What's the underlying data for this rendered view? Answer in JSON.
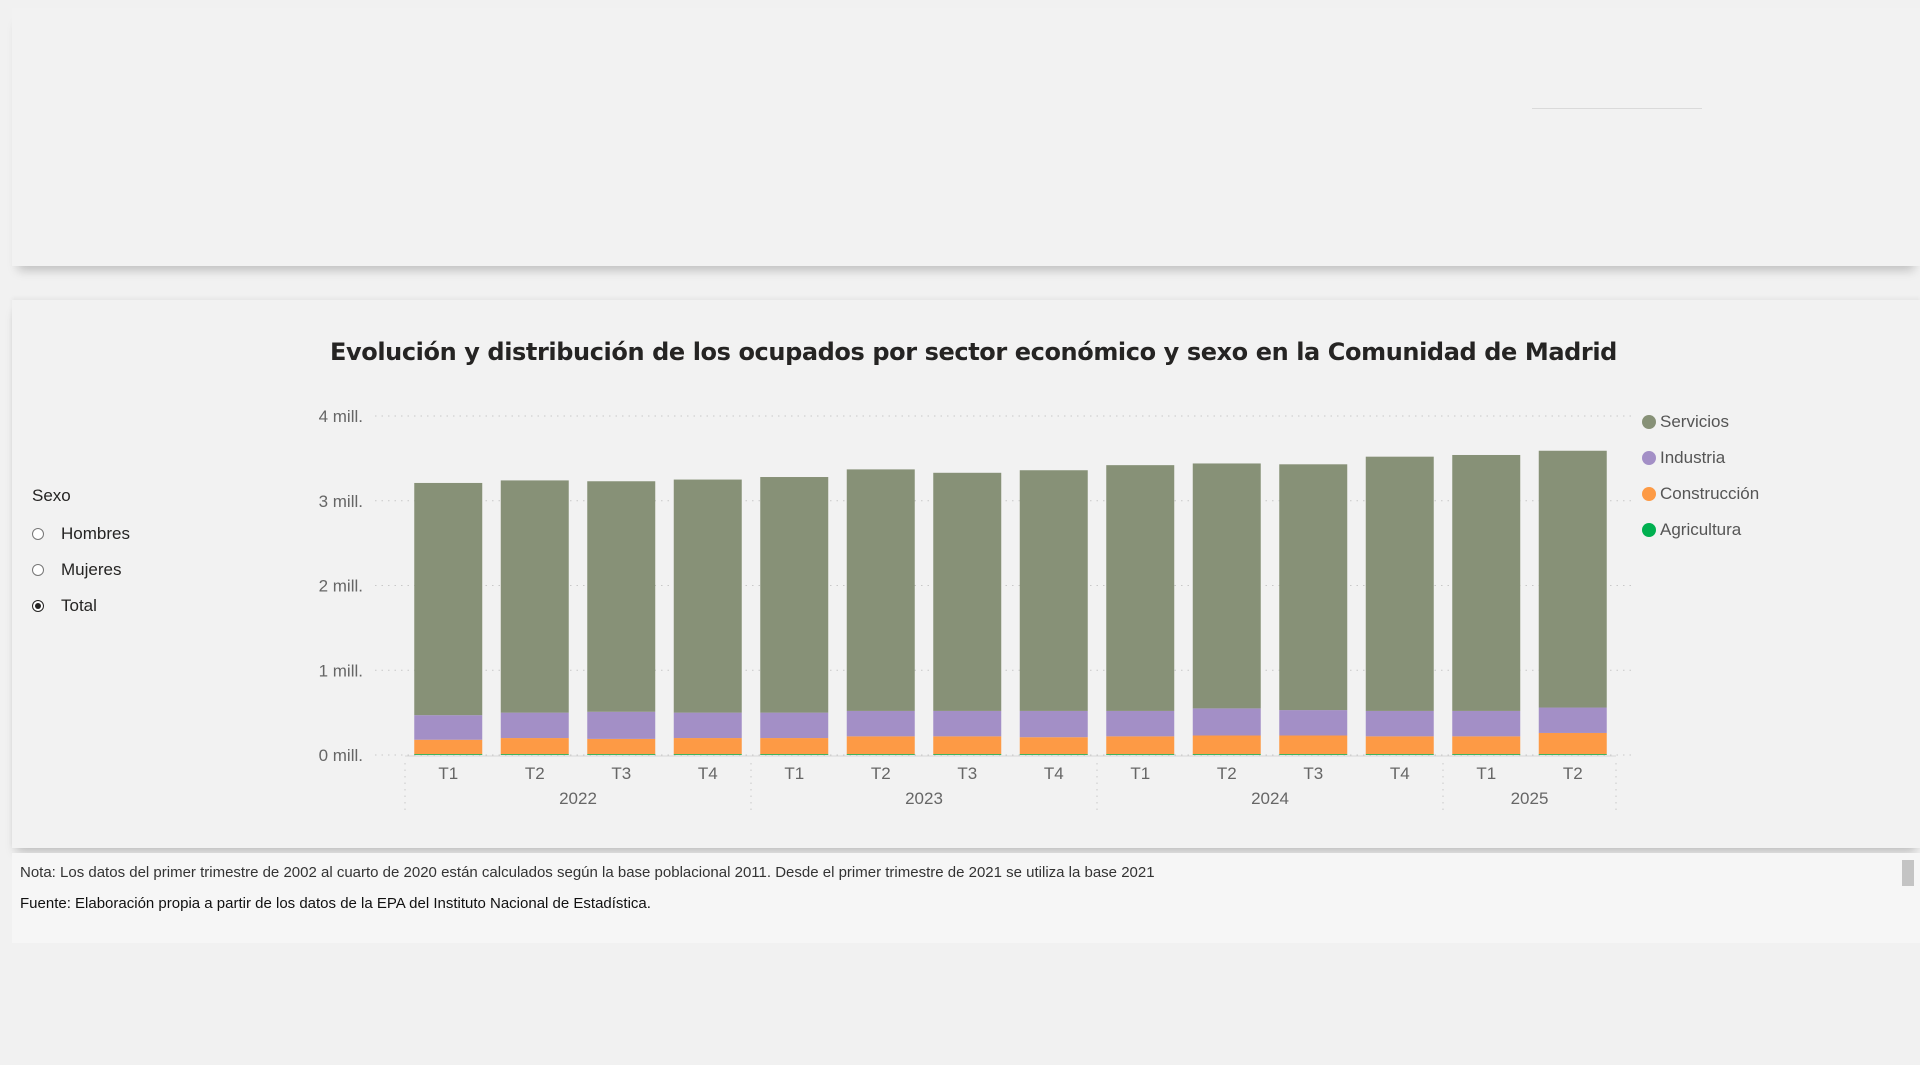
{
  "slicer": {
    "title": "Sexo",
    "options": [
      {
        "label": "Hombres",
        "selected": false
      },
      {
        "label": "Mujeres",
        "selected": false
      },
      {
        "label": "Total",
        "selected": true
      }
    ]
  },
  "notes": {
    "nota": "Nota: Los  datos del primer trimestre de 2002 al cuarto de 2020 están calculados según la base poblacional 2011. Desde el primer trimestre de 2021 se utiliza la base 2021",
    "fuente": "Fuente: Elaboración propia a partir de los datos de la EPA del Instituto Nacional de Estadística."
  },
  "chart_data": {
    "type": "bar",
    "stacked": true,
    "title": "Evolución y distribución de los ocupados por sector económico y sexo en la Comunidad de Madrid",
    "xlabel": "",
    "ylabel": "",
    "ylim": [
      0,
      4000000
    ],
    "yticks": [
      {
        "value": 0,
        "label": "0 mill."
      },
      {
        "value": 1000000,
        "label": "1 mill."
      },
      {
        "value": 2000000,
        "label": "2 mill."
      },
      {
        "value": 3000000,
        "label": "3 mill."
      },
      {
        "value": 4000000,
        "label": "4 mill."
      }
    ],
    "categories": [
      "T1",
      "T2",
      "T3",
      "T4",
      "T1",
      "T2",
      "T3",
      "T4",
      "T1",
      "T2",
      "T3",
      "T4",
      "T1",
      "T2"
    ],
    "years": [
      {
        "label": "2022",
        "count": 4
      },
      {
        "label": "2023",
        "count": 4
      },
      {
        "label": "2024",
        "count": 4
      },
      {
        "label": "2025",
        "count": 2
      }
    ],
    "grid": true,
    "legend_position": "right",
    "series": [
      {
        "name": "Agricultura",
        "color": "#00b050",
        "values": [
          10000,
          10000,
          10000,
          10000,
          10000,
          10000,
          10000,
          10000,
          10000,
          10000,
          10000,
          10000,
          10000,
          10000
        ]
      },
      {
        "name": "Construcción",
        "color": "#fd9a45",
        "values": [
          170000,
          190000,
          180000,
          190000,
          190000,
          210000,
          210000,
          200000,
          210000,
          220000,
          220000,
          210000,
          210000,
          250000
        ]
      },
      {
        "name": "Industria",
        "color": "#a38fc6",
        "values": [
          290000,
          300000,
          320000,
          300000,
          300000,
          300000,
          300000,
          310000,
          300000,
          320000,
          300000,
          300000,
          300000,
          300000
        ]
      },
      {
        "name": "Servicios",
        "color": "#879177",
        "values": [
          2740000,
          2740000,
          2720000,
          2750000,
          2780000,
          2850000,
          2810000,
          2840000,
          2900000,
          2890000,
          2900000,
          3000000,
          3020000,
          3030000
        ]
      }
    ]
  }
}
